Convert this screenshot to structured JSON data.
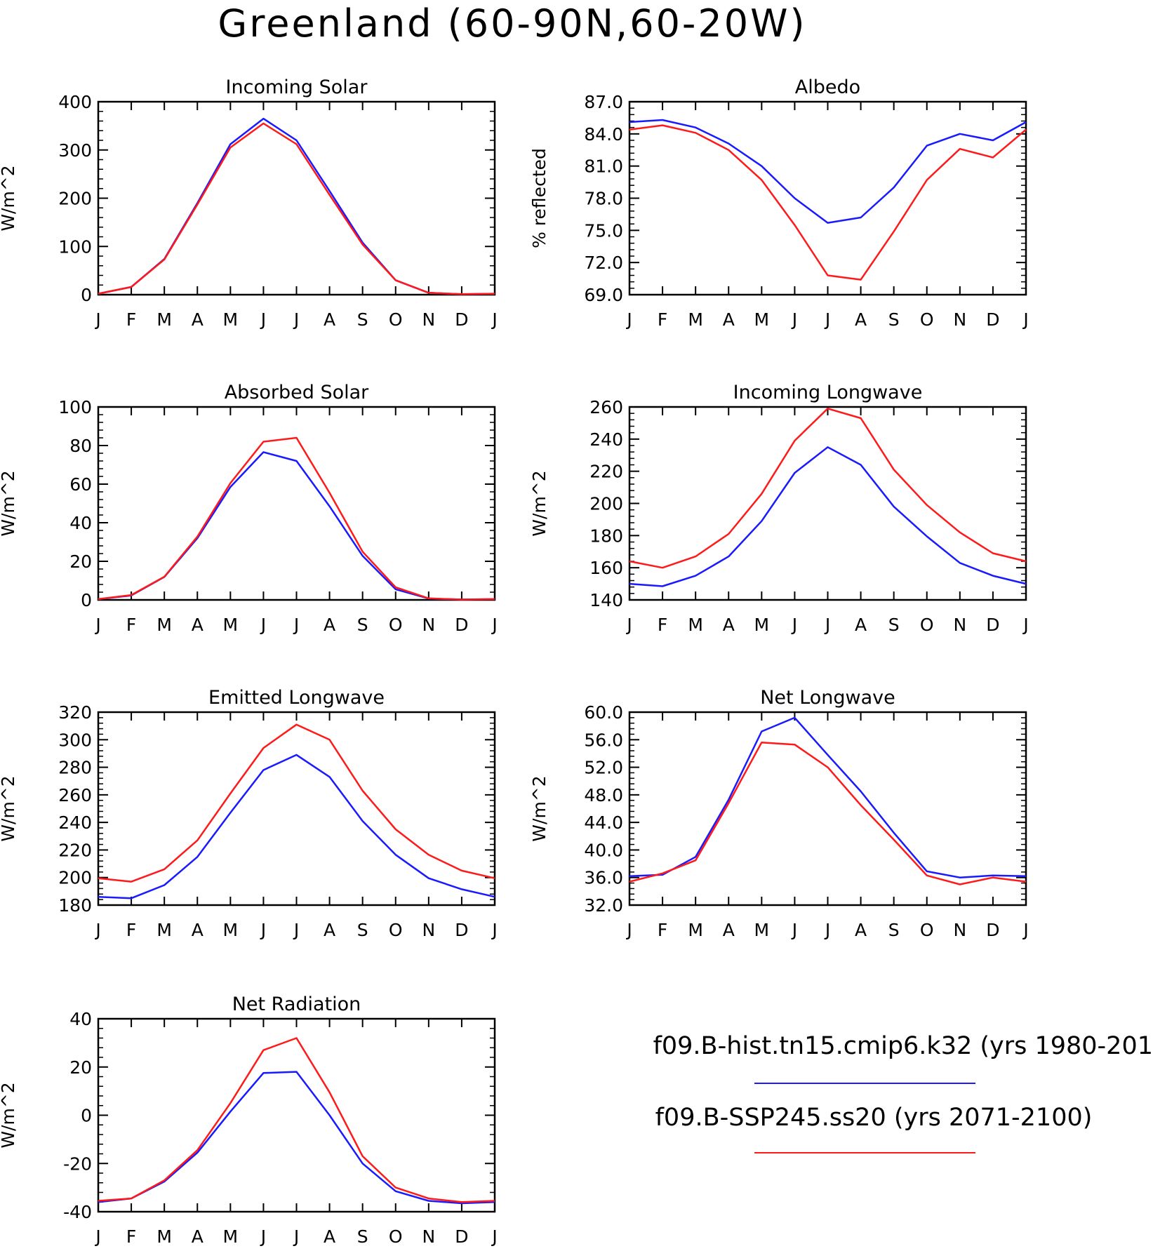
{
  "figure": {
    "title": "Greenland (60-90N,60-20W)"
  },
  "legend": [
    {
      "label": "f09.B-hist.tn15.cmip6.k32 (yrs 1980-201",
      "color": "#1a1aff"
    },
    {
      "label": "f09.B-SSP245.ss20 (yrs 2071-2100)",
      "color": "#ff1a1a"
    }
  ],
  "chart_data": [
    {
      "type": "line",
      "title": "Incoming Solar",
      "ylabel": "W/m^2",
      "ylim": [
        0,
        400
      ],
      "yticks": [
        "0",
        "100",
        "200",
        "300",
        "400"
      ],
      "categories": [
        "J",
        "F",
        "M",
        "A",
        "M",
        "J",
        "J",
        "A",
        "S",
        "O",
        "N",
        "D",
        "J"
      ],
      "series": [
        {
          "color": "#1a1aff",
          "values": [
            2,
            16,
            74,
            190,
            312,
            365,
            320,
            215,
            108,
            30,
            4,
            1,
            2
          ]
        },
        {
          "color": "#ff1a1a",
          "values": [
            2,
            16,
            73,
            187,
            305,
            355,
            312,
            207,
            104,
            30,
            4,
            1,
            2
          ]
        }
      ]
    },
    {
      "type": "line",
      "title": "Albedo",
      "ylabel": "% reflected",
      "ylim": [
        69.0,
        87.0
      ],
      "yticks": [
        "69.0",
        "72.0",
        "75.0",
        "78.0",
        "81.0",
        "84.0",
        "87.0"
      ],
      "categories": [
        "J",
        "F",
        "M",
        "A",
        "M",
        "J",
        "J",
        "A",
        "S",
        "O",
        "N",
        "D",
        "J"
      ],
      "series": [
        {
          "color": "#1a1aff",
          "values": [
            85.1,
            85.3,
            84.6,
            83.1,
            81.0,
            78.0,
            75.7,
            76.2,
            79.0,
            82.9,
            84.0,
            83.4,
            85.1
          ]
        },
        {
          "color": "#ff1a1a",
          "values": [
            84.4,
            84.8,
            84.1,
            82.5,
            79.7,
            75.5,
            70.8,
            70.4,
            74.9,
            79.7,
            82.6,
            81.8,
            84.4
          ]
        }
      ]
    },
    {
      "type": "line",
      "title": "Absorbed Solar",
      "ylabel": "W/m^2",
      "ylim": [
        0,
        100
      ],
      "yticks": [
        "0",
        "20",
        "40",
        "60",
        "80",
        "100"
      ],
      "categories": [
        "J",
        "F",
        "M",
        "A",
        "M",
        "J",
        "J",
        "A",
        "S",
        "O",
        "N",
        "D",
        "J"
      ],
      "series": [
        {
          "color": "#1a1aff",
          "values": [
            0.4,
            2.3,
            11.9,
            32.0,
            58.5,
            76.6,
            72.0,
            48.5,
            22.8,
            5.5,
            0.7,
            0.2,
            0.4
          ]
        },
        {
          "color": "#ff1a1a",
          "values": [
            0.4,
            2.5,
            12.0,
            32.8,
            60.5,
            82.0,
            84.0,
            55.5,
            25.0,
            6.5,
            0.8,
            0.2,
            0.4
          ]
        }
      ]
    },
    {
      "type": "line",
      "title": "Incoming Longwave",
      "ylabel": "W/m^2",
      "ylim": [
        140,
        260
      ],
      "yticks": [
        "140",
        "160",
        "180",
        "200",
        "220",
        "240",
        "260"
      ],
      "categories": [
        "J",
        "F",
        "M",
        "A",
        "M",
        "J",
        "J",
        "A",
        "S",
        "O",
        "N",
        "D",
        "J"
      ],
      "series": [
        {
          "color": "#1a1aff",
          "values": [
            150,
            148.5,
            155,
            167,
            189,
            219,
            235,
            224,
            198,
            179.5,
            163,
            155,
            150
          ]
        },
        {
          "color": "#ff1a1a",
          "values": [
            164,
            160,
            167,
            181,
            206,
            239,
            259,
            253,
            221,
            199,
            182,
            169,
            164
          ]
        }
      ]
    },
    {
      "type": "line",
      "title": "Emitted Longwave",
      "ylabel": "W/m^2",
      "ylim": [
        180,
        320
      ],
      "yticks": [
        "180",
        "200",
        "220",
        "240",
        "260",
        "280",
        "300",
        "320"
      ],
      "categories": [
        "J",
        "F",
        "M",
        "A",
        "M",
        "J",
        "J",
        "A",
        "S",
        "O",
        "N",
        "D",
        "J"
      ],
      "series": [
        {
          "color": "#1a1aff",
          "values": [
            186,
            185,
            194.5,
            215,
            247,
            278,
            289,
            273,
            241,
            216.5,
            199.5,
            191.5,
            186
          ]
        },
        {
          "color": "#ff1a1a",
          "values": [
            199.5,
            197,
            206,
            227,
            261,
            294,
            311,
            300,
            263,
            235,
            216.5,
            205,
            199.5
          ]
        }
      ]
    },
    {
      "type": "line",
      "title": "Net Longwave",
      "ylabel": "W/m^2",
      "ylim": [
        32.0,
        60.0
      ],
      "yticks": [
        "32.0",
        "36.0",
        "40.0",
        "44.0",
        "48.0",
        "52.0",
        "56.0",
        "60.0"
      ],
      "categories": [
        "J",
        "F",
        "M",
        "A",
        "M",
        "J",
        "J",
        "A",
        "S",
        "O",
        "N",
        "D",
        "J"
      ],
      "series": [
        {
          "color": "#1a1aff",
          "values": [
            36.2,
            36.4,
            39.0,
            47.3,
            57.2,
            59.2,
            53.8,
            48.5,
            42.5,
            36.9,
            36.0,
            36.3,
            36.2
          ]
        },
        {
          "color": "#ff1a1a",
          "values": [
            35.4,
            36.6,
            38.5,
            46.8,
            55.6,
            55.3,
            52.0,
            46.5,
            41.5,
            36.3,
            35.0,
            36.0,
            35.4
          ]
        }
      ]
    },
    {
      "type": "line",
      "title": "Net Radiation",
      "ylabel": "W/m^2",
      "ylim": [
        -40,
        40
      ],
      "yticks": [
        "-40",
        "-20",
        "0",
        "20",
        "40"
      ],
      "categories": [
        "J",
        "F",
        "M",
        "A",
        "M",
        "J",
        "J",
        "A",
        "S",
        "O",
        "N",
        "D",
        "J"
      ],
      "series": [
        {
          "color": "#1a1aff",
          "values": [
            -36,
            -34.5,
            -27.5,
            -15.5,
            1.5,
            17.5,
            18,
            0,
            -20,
            -31.5,
            -35.5,
            -36.5,
            -36
          ]
        },
        {
          "color": "#ff1a1a",
          "values": [
            -35.5,
            -34.5,
            -27,
            -14.5,
            5,
            27,
            32,
            9.5,
            -17,
            -30,
            -34.5,
            -36,
            -35.5
          ]
        }
      ]
    }
  ]
}
